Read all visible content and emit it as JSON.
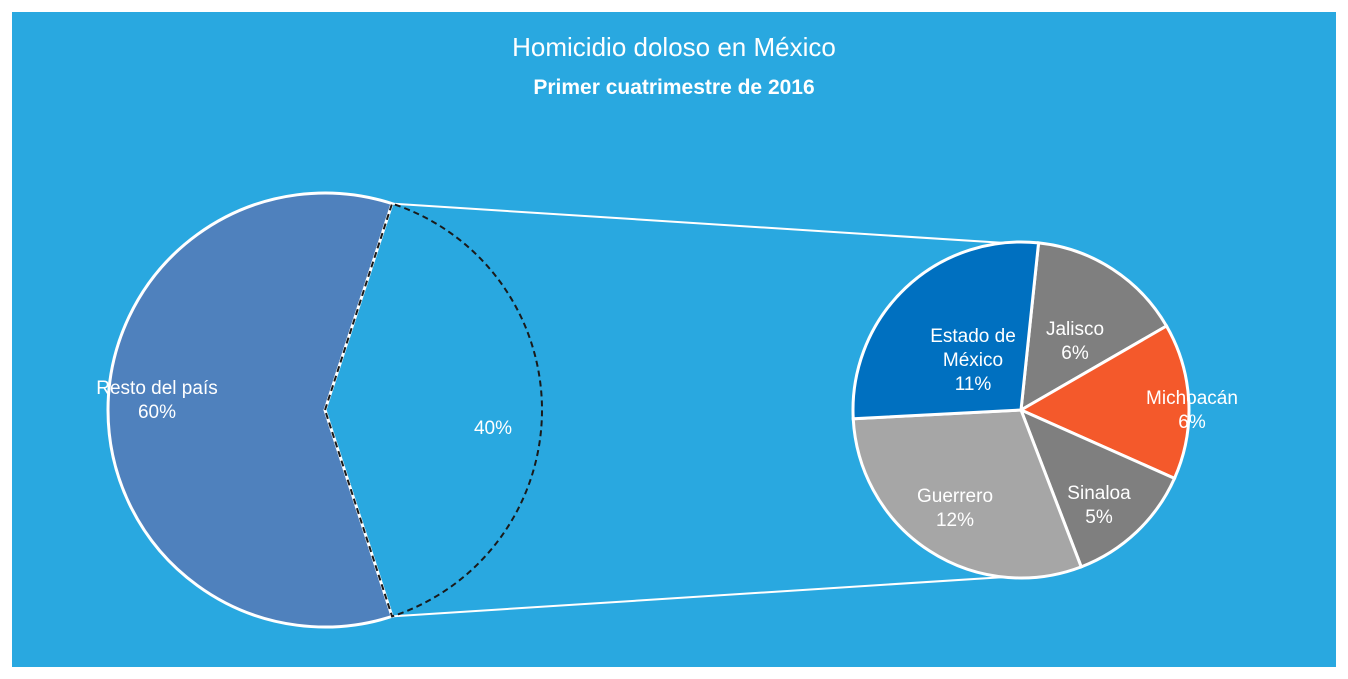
{
  "chart_data": {
    "type": "pie",
    "title": "Homicidio doloso en México",
    "subtitle": "Primer cuatrimestre de 2016",
    "main_pie": {
      "slices": [
        {
          "name": "Resto del país",
          "label_lines": [
            "Resto del país",
            "60%"
          ],
          "value": 60,
          "color": "#4F81BD"
        },
        {
          "name": "",
          "label_lines": [
            "40%"
          ],
          "value": 40,
          "color": "#29A8E0"
        }
      ]
    },
    "detail_pie": {
      "slices": [
        {
          "name": "Jalisco",
          "label_lines": [
            "Jalisco",
            "6%"
          ],
          "value": 6,
          "color": "#7F7F7F"
        },
        {
          "name": "Michoacán",
          "label_lines": [
            "Michoacán",
            "6%"
          ],
          "value": 6,
          "color": "#F4592B"
        },
        {
          "name": "Sinaloa",
          "label_lines": [
            "Sinaloa",
            "5%"
          ],
          "value": 5,
          "color": "#7F7F7F"
        },
        {
          "name": "Guerrero",
          "label_lines": [
            "Guerrero",
            "12%"
          ],
          "value": 12,
          "color": "#A6A6A6"
        },
        {
          "name": "Estado de México",
          "label_lines": [
            "Estado de",
            "México",
            "11%"
          ],
          "value": 11,
          "color": "#0070C0"
        }
      ]
    },
    "background": "#29A8E0",
    "legend": "none"
  }
}
